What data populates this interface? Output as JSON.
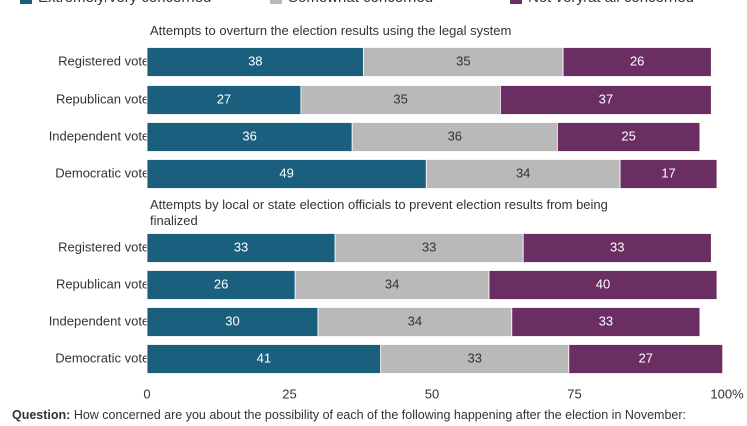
{
  "chart_data": {
    "type": "stacked-bar",
    "orientation": "horizontal",
    "series": [
      {
        "name": "Extremely/very concerned",
        "color": "#1b5f7f"
      },
      {
        "name": "Somewhat concerned",
        "color": "#b9b9b9"
      },
      {
        "name": "Not very/at all concerned",
        "color": "#6a2e62"
      }
    ],
    "panels": [
      {
        "title": "Attempts to overturn the election results using the legal system",
        "categories": [
          "Registered voters",
          "Republican voters",
          "Independent voters",
          "Democratic voters"
        ],
        "values": [
          [
            38,
            27,
            36,
            49
          ],
          [
            35,
            35,
            36,
            34
          ],
          [
            26,
            37,
            25,
            17
          ]
        ]
      },
      {
        "title": "Attempts by local or state election officials to prevent election results from being finalized",
        "categories": [
          "Registered voters",
          "Republican voters",
          "Independent voters",
          "Democratic voters"
        ],
        "values": [
          [
            33,
            26,
            30,
            41
          ],
          [
            33,
            34,
            34,
            33
          ],
          [
            33,
            40,
            33,
            27
          ]
        ]
      }
    ],
    "xlim": [
      0,
      100
    ],
    "xticks": [
      0,
      25,
      50,
      75,
      {
        "value": 100,
        "label": "100%"
      }
    ],
    "note_label": "Question:",
    "note": "How concerned are you about the possibility of each of the following happening after the election in November:"
  }
}
